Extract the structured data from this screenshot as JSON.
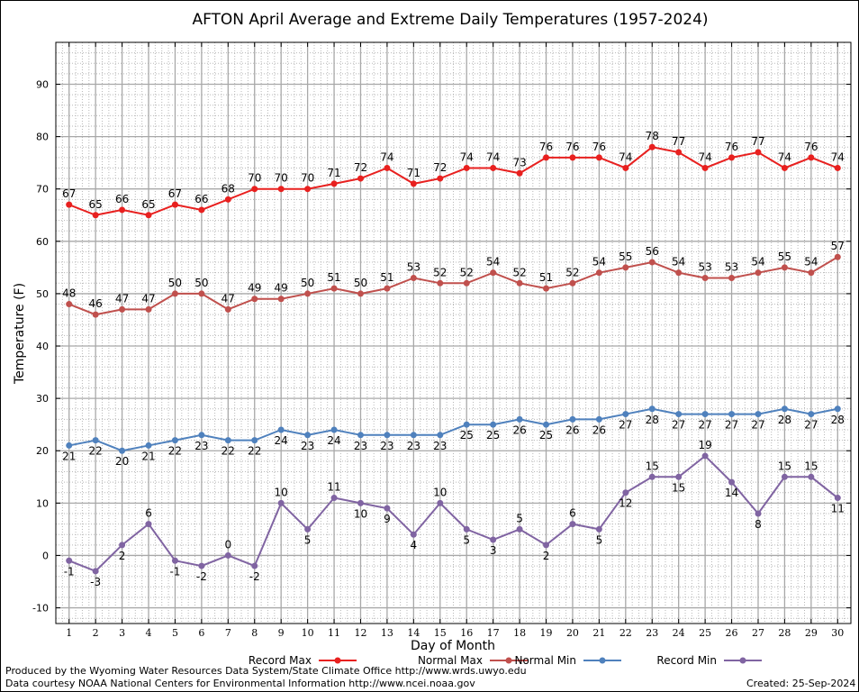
{
  "chart_data": {
    "type": "line",
    "title": "AFTON April Average and Extreme Daily Temperatures (1957-2024)",
    "xlabel": "Day of Month",
    "ylabel": "Temperature (F)",
    "xlim": [
      0.5,
      30.5
    ],
    "ylim": [
      -13,
      98
    ],
    "yticks": [
      -10,
      0,
      10,
      20,
      30,
      40,
      50,
      60,
      70,
      80,
      90
    ],
    "x": [
      1,
      2,
      3,
      4,
      5,
      6,
      7,
      8,
      9,
      10,
      11,
      12,
      13,
      14,
      15,
      16,
      17,
      18,
      19,
      20,
      21,
      22,
      23,
      24,
      25,
      26,
      27,
      28,
      29,
      30
    ],
    "grid": true,
    "legend_position": "bottom",
    "series": [
      {
        "name": "Record Max",
        "color": "#e8201f",
        "label_side": "above",
        "values": [
          67,
          65,
          66,
          65,
          67,
          66,
          68,
          70,
          70,
          70,
          71,
          72,
          74,
          71,
          72,
          74,
          74,
          73,
          76,
          76,
          76,
          74,
          78,
          77,
          74,
          76,
          77,
          74,
          76,
          74
        ]
      },
      {
        "name": "Normal Max",
        "color": "#c0504d",
        "label_side": "above",
        "values": [
          48,
          46,
          47,
          47,
          50,
          50,
          47,
          49,
          49,
          50,
          51,
          50,
          51,
          53,
          52,
          52,
          54,
          52,
          51,
          52,
          54,
          55,
          56,
          54,
          53,
          53,
          54,
          55,
          54,
          57
        ]
      },
      {
        "name": "Normal Min",
        "color": "#4f81bd",
        "label_side": "below",
        "values": [
          21,
          22,
          20,
          21,
          22,
          23,
          22,
          22,
          24,
          23,
          24,
          23,
          23,
          23,
          23,
          25,
          25,
          26,
          25,
          26,
          26,
          27,
          28,
          27,
          27,
          27,
          27,
          28,
          27,
          28
        ]
      },
      {
        "name": "Record Min",
        "color": "#8064a2",
        "label_side": "mixed",
        "values": [
          -1,
          -3,
          2,
          6,
          -1,
          -2,
          0,
          -2,
          10,
          5,
          11,
          10,
          9,
          4,
          10,
          5,
          3,
          5,
          2,
          6,
          5,
          12,
          15,
          15,
          19,
          14,
          8,
          15,
          15,
          11
        ]
      }
    ]
  },
  "footer": {
    "produced_by": "Produced by the Wyoming Water Resources Data System/State Climate Office http://www.wrds.uwyo.edu",
    "courtesy": "Data courtesy NOAA National Centers for Environmental Information http://www.ncei.noaa.gov",
    "created": "Created:  25-Sep-2024"
  }
}
